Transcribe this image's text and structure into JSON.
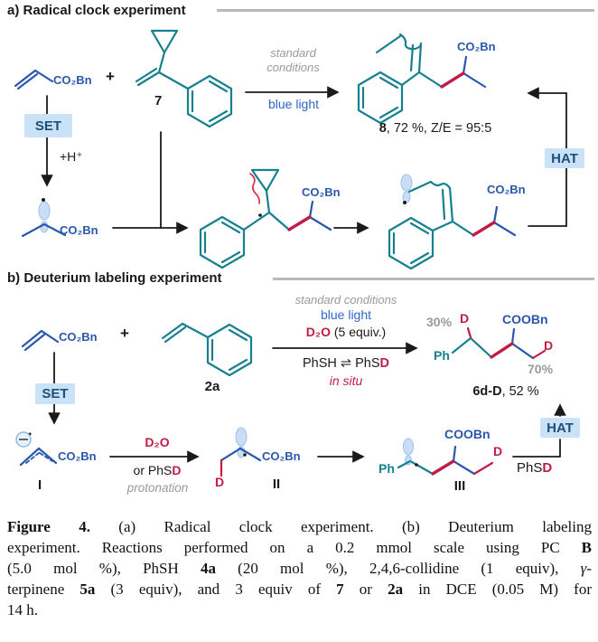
{
  "colors": {
    "teal": "#16808F",
    "ester_blue": "#2a57ad",
    "crimson": "#C01D45",
    "light_blue_box": "#C9E2F7",
    "box_text_navy": "#1F4E79",
    "gray_text": "#9A9A9A",
    "lobe_blue": "#C9DEF5",
    "bright_blue": "#2E68C8"
  },
  "section_a": {
    "title": "a) Radical clock experiment",
    "acrylate_ester": "CO₂Bn",
    "plus": "+",
    "compound_number": "7",
    "cond_line1": "standard",
    "cond_line2": "conditions",
    "light": "blue light",
    "set_box": "SET",
    "hat_box": "HAT",
    "proton": "+H⁺",
    "radical_ester": "CO₂Bn",
    "product_ester": "CO₂Bn",
    "product_label": [
      {
        "t": "8",
        "cls": "b"
      },
      {
        "t": ", 72 %, Z/E = 95:5",
        "cls": ""
      }
    ],
    "mid_ester": "CO₂Bn",
    "ring_opened_ester": "CO₂Bn"
  },
  "section_b": {
    "title": "b) Deuterium labeling experiment",
    "acrylate_ester": "CO₂Bn",
    "plus": "+",
    "styrene_number": "2a",
    "cond": "standard conditions",
    "light": "blue light",
    "d2o_line": [
      {
        "t": "D₂O",
        "cls": "crimson b"
      },
      {
        "t": " (5 equiv.)",
        "cls": ""
      }
    ],
    "equilibrium": [
      {
        "t": "PhSH ⇌ PhS",
        "cls": ""
      },
      {
        "t": "D",
        "cls": "crimson b"
      }
    ],
    "in_situ": "in situ",
    "set_box": "SET",
    "hat_box": "HAT",
    "product": {
      "pct_top": "30%",
      "d_top": "D",
      "ester": "COOBn",
      "ph": "Ph",
      "d_right": "D",
      "pct_right": "70%",
      "label": [
        {
          "t": "6d-D",
          "cls": "b"
        },
        {
          "t": ", 52 %",
          "cls": ""
        }
      ]
    },
    "int_I": {
      "label": "I",
      "ester": "CO₂Bn"
    },
    "arrow_I_II": {
      "top": "D₂O",
      "mid": [
        {
          "t": "or PhS",
          "cls": ""
        },
        {
          "t": "D",
          "cls": "crimson b"
        }
      ],
      "bottom": "protonation"
    },
    "int_II": {
      "label": "II",
      "ester": "CO₂Bn",
      "d": "D"
    },
    "int_III": {
      "label": "III",
      "ph": "Ph",
      "ester": "COOBn",
      "d": "D"
    },
    "phsd": [
      {
        "t": "PhS",
        "cls": ""
      },
      {
        "t": "D",
        "cls": "crimson b"
      }
    ]
  },
  "caption": {
    "lines": [
      [
        {
          "t": "Figure 4.",
          "cls": "b"
        },
        {
          "t": " (a) Radical clock experiment. (b) Deuterium labeling",
          "cls": ""
        }
      ],
      [
        {
          "t": "experiment. Reactions performed on a 0.2 mmol scale using PC ",
          "cls": ""
        },
        {
          "t": "B",
          "cls": "b"
        }
      ],
      [
        {
          "t": "(5.0 mol %), PhSH ",
          "cls": ""
        },
        {
          "t": "4a",
          "cls": "b"
        },
        {
          "t": " (20 mol %), 2,4,6-collidine (1 equiv), ",
          "cls": ""
        },
        {
          "t": "γ",
          "cls": "i"
        },
        {
          "t": "-",
          "cls": ""
        }
      ],
      [
        {
          "t": "terpinene ",
          "cls": ""
        },
        {
          "t": "5a",
          "cls": "b"
        },
        {
          "t": " (3 equiv), and 3 equiv of ",
          "cls": ""
        },
        {
          "t": "7",
          "cls": "b"
        },
        {
          "t": " or ",
          "cls": ""
        },
        {
          "t": "2a",
          "cls": "b"
        },
        {
          "t": " in DCE (0.05 M) for",
          "cls": ""
        }
      ],
      [
        {
          "t": "14 h.",
          "cls": ""
        }
      ]
    ]
  }
}
